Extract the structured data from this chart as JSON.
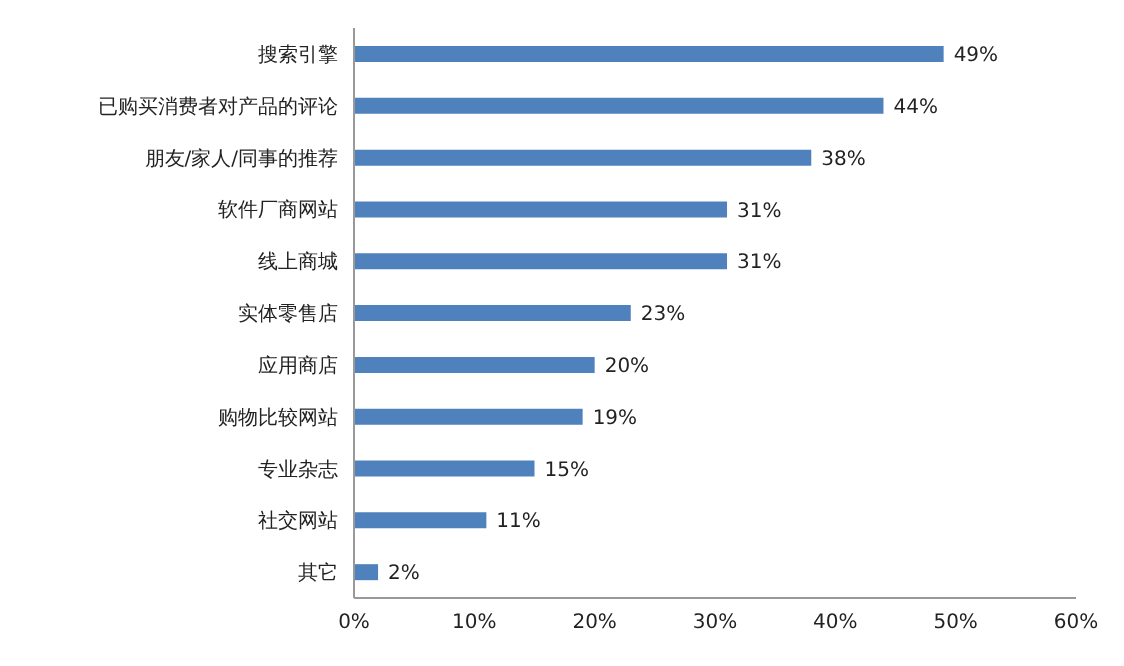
{
  "chart_data": {
    "type": "bar",
    "orientation": "horizontal",
    "categories": [
      "搜索引擎",
      "已购买消费者对产品的评论",
      "朋友/家人/同事的推荐",
      "软件厂商网站",
      "线上商城",
      "实体零售店",
      "应用商店",
      "购物比较网站",
      "专业杂志",
      "社交网站",
      "其它"
    ],
    "values": [
      49,
      44,
      38,
      31,
      31,
      23,
      20,
      19,
      15,
      11,
      2
    ],
    "value_labels": [
      "49%",
      "44%",
      "38%",
      "31%",
      "31%",
      "23%",
      "20%",
      "19%",
      "15%",
      "11%",
      "2%"
    ],
    "color": "#4f81bd",
    "xlim": [
      0,
      60
    ],
    "xticks": [
      {
        "value": 0,
        "label": "0%"
      },
      {
        "value": 10,
        "label": "10%"
      },
      {
        "value": 20,
        "label": "20%"
      },
      {
        "value": 30,
        "label": "30%"
      },
      {
        "value": 40,
        "label": "40%"
      },
      {
        "value": 50,
        "label": "50%"
      },
      {
        "value": 60,
        "label": "60%"
      }
    ],
    "grid": false,
    "legend": false
  }
}
